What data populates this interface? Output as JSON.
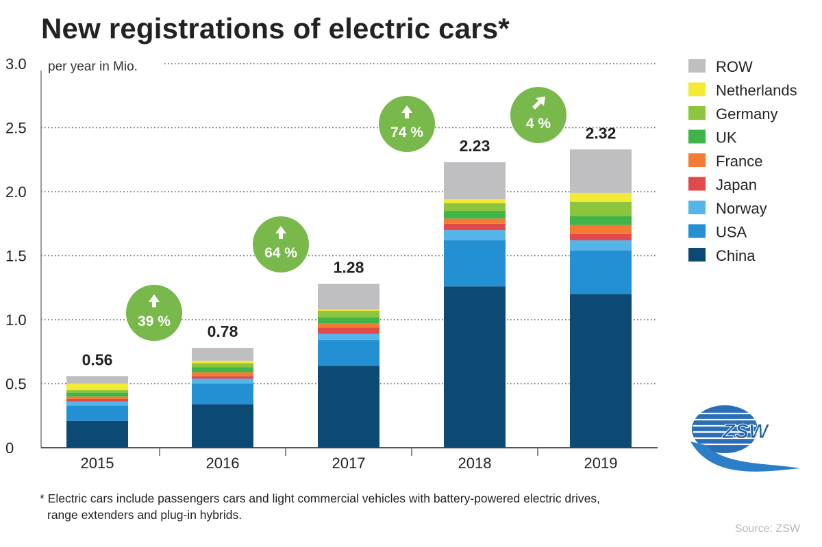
{
  "title": "New registrations of electric cars*",
  "footnote_line1": "* Electric cars include passengers cars and light commercial vehicles with battery-powered electric drives,",
  "footnote_line2": "range extenders and plug-in hybrids.",
  "source": "Source: ZSW",
  "logo_text": "ZSW",
  "chart_data": {
    "type": "bar",
    "stacked": true,
    "ylabel": "per year in Mio.",
    "ylim": [
      0,
      3.0
    ],
    "yticks": [
      "0",
      "0.5",
      "1.0",
      "1.5",
      "2.0",
      "2.5",
      "3.0"
    ],
    "grid": "horizontal dotted",
    "legend_position": "right",
    "categories": [
      "2015",
      "2016",
      "2017",
      "2018",
      "2019"
    ],
    "totals": [
      "0.56",
      "0.78",
      "1.28",
      "2.23",
      "2.32"
    ],
    "growth": [
      {
        "label": "39 %",
        "between": [
          "2015",
          "2016"
        ],
        "arrow": "up"
      },
      {
        "label": "64 %",
        "between": [
          "2016",
          "2017"
        ],
        "arrow": "up"
      },
      {
        "label": "74 %",
        "between": [
          "2017",
          "2018"
        ],
        "arrow": "up"
      },
      {
        "label": "4 %",
        "between": [
          "2018",
          "2019"
        ],
        "arrow": "up-right"
      }
    ],
    "series": [
      {
        "name": "China",
        "color": "#0d4a73",
        "values": [
          0.21,
          0.34,
          0.64,
          1.26,
          1.2
        ]
      },
      {
        "name": "USA",
        "color": "#2290d2",
        "values": [
          0.12,
          0.16,
          0.2,
          0.36,
          0.34
        ]
      },
      {
        "name": "Norway",
        "color": "#56b5e8",
        "values": [
          0.03,
          0.04,
          0.05,
          0.08,
          0.08
        ]
      },
      {
        "name": "Japan",
        "color": "#e04a4a",
        "values": [
          0.02,
          0.02,
          0.05,
          0.05,
          0.05
        ]
      },
      {
        "name": "France",
        "color": "#f57b34",
        "values": [
          0.02,
          0.03,
          0.03,
          0.04,
          0.07
        ]
      },
      {
        "name": "UK",
        "color": "#3fb549",
        "values": [
          0.03,
          0.04,
          0.05,
          0.06,
          0.07
        ]
      },
      {
        "name": "Germany",
        "color": "#8cc63e",
        "values": [
          0.02,
          0.03,
          0.05,
          0.06,
          0.11
        ]
      },
      {
        "name": "Netherlands",
        "color": "#f2ea35",
        "values": [
          0.05,
          0.02,
          0.01,
          0.03,
          0.07
        ]
      },
      {
        "name": "ROW",
        "color": "#bfbfc1",
        "values": [
          0.06,
          0.1,
          0.2,
          0.29,
          0.34
        ]
      }
    ]
  }
}
